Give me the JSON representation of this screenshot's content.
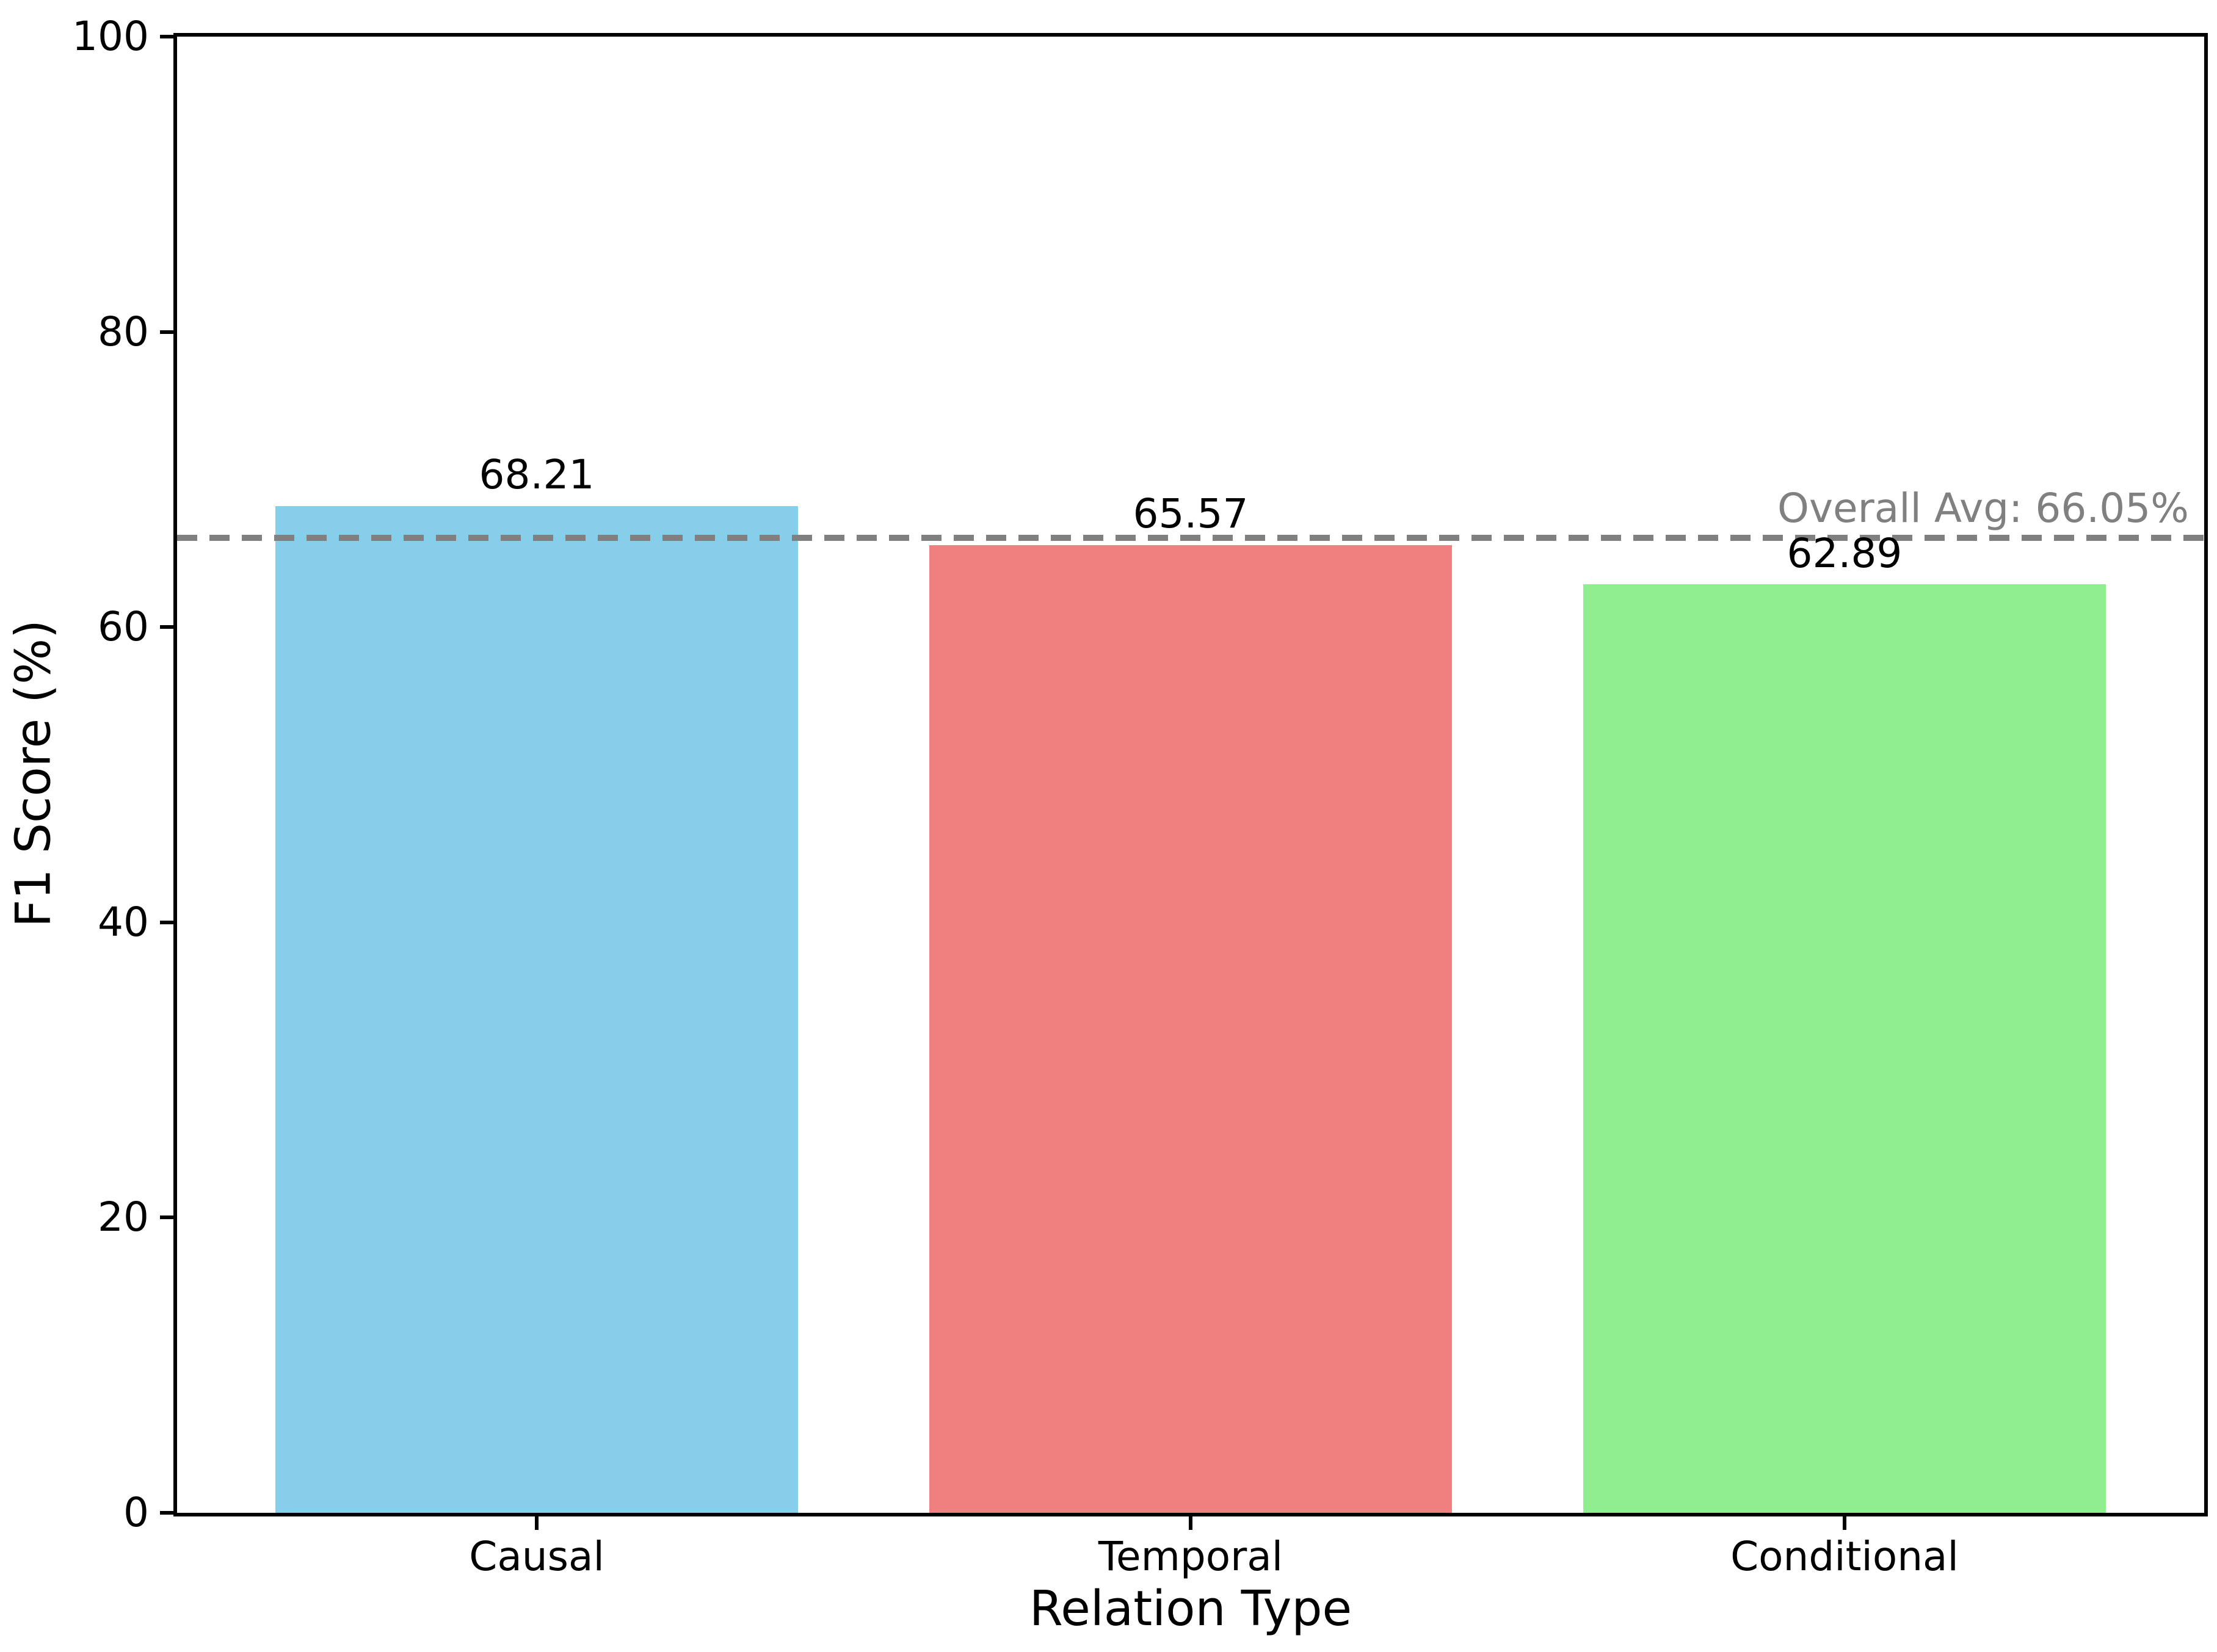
{
  "chart_data": {
    "type": "bar",
    "title": "",
    "xlabel": "Relation Type",
    "ylabel": "F1 Score (%)",
    "categories": [
      "Causal",
      "Temporal",
      "Conditional"
    ],
    "values": [
      68.21,
      65.57,
      62.89
    ],
    "value_labels": [
      "68.21",
      "65.57",
      "62.89"
    ],
    "bar_colors": [
      "#87CEEB",
      "#F08080",
      "#90EE90"
    ],
    "ylim": [
      0,
      100
    ],
    "yticks": [
      0,
      20,
      40,
      60,
      80,
      100
    ],
    "grid": false,
    "legend": "none",
    "reference_line": {
      "value": 66.05,
      "label": "Overall Avg: 66.05%",
      "color": "#808080",
      "style": "dashed"
    }
  },
  "colors": {
    "axis": "#000000",
    "background": "#ffffff",
    "annotation": "#808080"
  }
}
